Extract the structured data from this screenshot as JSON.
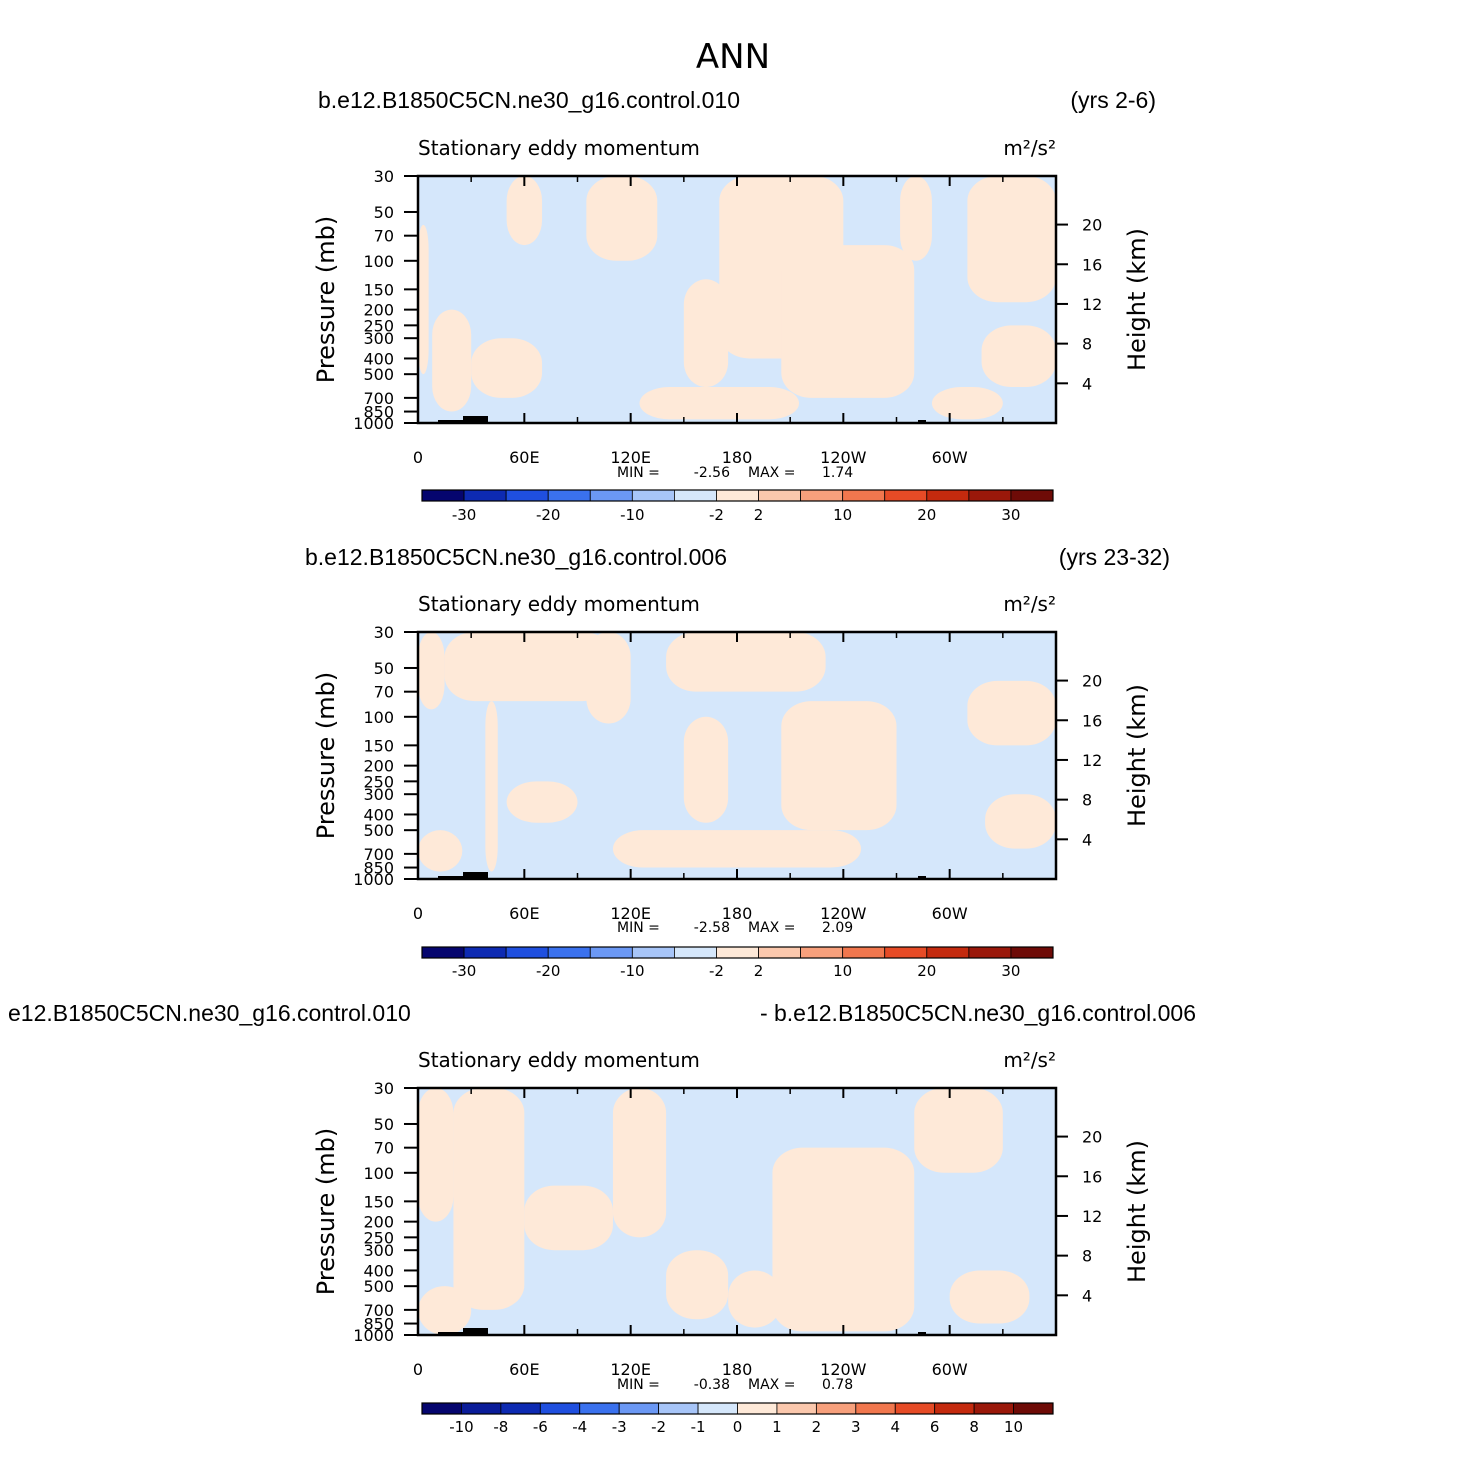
{
  "figure_title": "ANN",
  "colors": {
    "neg": "#d5e7fb",
    "pos": "#fee9d8",
    "topo": "#000000"
  },
  "chart_data": [
    {
      "type": "heatmap",
      "case_left": "b.e12.B1850C5CN.ne30_g16.control.010",
      "case_right": "(yrs 2-6)",
      "subtitle": "Stationary eddy momentum",
      "units": "m²/s²",
      "ylabel": "Pressure (mb)",
      "y2label": "Height (km)",
      "x_ticks": [
        "0",
        "60E",
        "120E",
        "180",
        "120W",
        "60W"
      ],
      "y_ticks": [
        "30",
        "50",
        "70",
        "100",
        "150",
        "200",
        "250",
        "300",
        "400",
        "500",
        "700",
        "850",
        "1000"
      ],
      "y2_ticks": [
        "20",
        "16",
        "12",
        "8",
        "4"
      ],
      "min_label": "MIN =",
      "min_value": "-2.56",
      "max_label": "MAX =",
      "max_value": "1.74",
      "colorbar_labels": [
        "-30",
        "-20",
        "-10",
        "-2",
        "2",
        "10",
        "20",
        "30"
      ],
      "colorbar_colors": [
        "#05056e",
        "#0d2ab2",
        "#1f4fdf",
        "#3a71ee",
        "#6b98f4",
        "#a7c5f8",
        "#d5e7fb",
        "#fee9d8",
        "#fbc8ad",
        "#f7a07c",
        "#f1774e",
        "#e64b26",
        "#c42a0e",
        "#9a180a",
        "#6e0b07"
      ],
      "x_range_deg": [
        0,
        360
      ],
      "y_range_mb": [
        1000,
        30
      ],
      "pos_regions": [
        {
          "lon": [
            0,
            6
          ],
          "p": [
            60,
            500
          ]
        },
        {
          "lon": [
            8,
            30
          ],
          "p": [
            200,
            850
          ]
        },
        {
          "lon": [
            30,
            70
          ],
          "p": [
            300,
            700
          ]
        },
        {
          "lon": [
            50,
            70
          ],
          "p": [
            30,
            80
          ]
        },
        {
          "lon": [
            95,
            135
          ],
          "p": [
            30,
            100
          ]
        },
        {
          "lon": [
            150,
            175
          ],
          "p": [
            130,
            600
          ]
        },
        {
          "lon": [
            125,
            215
          ],
          "p": [
            600,
            950
          ]
        },
        {
          "lon": [
            170,
            240
          ],
          "p": [
            30,
            400
          ]
        },
        {
          "lon": [
            205,
            280
          ],
          "p": [
            80,
            700
          ]
        },
        {
          "lon": [
            272,
            290
          ],
          "p": [
            30,
            100
          ]
        },
        {
          "lon": [
            310,
            360
          ],
          "p": [
            30,
            180
          ]
        },
        {
          "lon": [
            318,
            360
          ],
          "p": [
            250,
            600
          ]
        },
        {
          "lon": [
            290,
            330
          ],
          "p": [
            600,
            950
          ]
        }
      ]
    },
    {
      "type": "heatmap",
      "case_left": "b.e12.B1850C5CN.ne30_g16.control.006",
      "case_right": "(yrs 23-32)",
      "subtitle": "Stationary eddy momentum",
      "units": "m²/s²",
      "ylabel": "Pressure (mb)",
      "y2label": "Height (km)",
      "x_ticks": [
        "0",
        "60E",
        "120E",
        "180",
        "120W",
        "60W"
      ],
      "y_ticks": [
        "30",
        "50",
        "70",
        "100",
        "150",
        "200",
        "250",
        "300",
        "400",
        "500",
        "700",
        "850",
        "1000"
      ],
      "y2_ticks": [
        "20",
        "16",
        "12",
        "8",
        "4"
      ],
      "min_label": "MIN =",
      "min_value": "-2.58",
      "max_label": "MAX =",
      "max_value": "2.09",
      "colorbar_labels": [
        "-30",
        "-20",
        "-10",
        "-2",
        "2",
        "10",
        "20",
        "30"
      ],
      "colorbar_colors": [
        "#05056e",
        "#0d2ab2",
        "#1f4fdf",
        "#3a71ee",
        "#6b98f4",
        "#a7c5f8",
        "#d5e7fb",
        "#fee9d8",
        "#fbc8ad",
        "#f7a07c",
        "#f1774e",
        "#e64b26",
        "#c42a0e",
        "#9a180a",
        "#6e0b07"
      ],
      "x_range_deg": [
        0,
        360
      ],
      "y_range_mb": [
        1000,
        30
      ],
      "pos_regions": [
        {
          "lon": [
            0,
            15
          ],
          "p": [
            30,
            90
          ]
        },
        {
          "lon": [
            15,
            110
          ],
          "p": [
            30,
            80
          ]
        },
        {
          "lon": [
            38,
            45
          ],
          "p": [
            80,
            900
          ]
        },
        {
          "lon": [
            50,
            90
          ],
          "p": [
            250,
            450
          ]
        },
        {
          "lon": [
            95,
            120
          ],
          "p": [
            30,
            110
          ]
        },
        {
          "lon": [
            140,
            230
          ],
          "p": [
            30,
            70
          ]
        },
        {
          "lon": [
            150,
            175
          ],
          "p": [
            100,
            450
          ]
        },
        {
          "lon": [
            110,
            250
          ],
          "p": [
            500,
            850
          ]
        },
        {
          "lon": [
            205,
            270
          ],
          "p": [
            80,
            500
          ]
        },
        {
          "lon": [
            310,
            360
          ],
          "p": [
            60,
            150
          ]
        },
        {
          "lon": [
            320,
            360
          ],
          "p": [
            300,
            650
          ]
        },
        {
          "lon": [
            0,
            25
          ],
          "p": [
            500,
            900
          ]
        }
      ]
    },
    {
      "type": "heatmap",
      "case_left": "e12.B1850C5CN.ne30_g16.control.010",
      "case_right": "- b.e12.B1850C5CN.ne30_g16.control.006",
      "subtitle": "Stationary eddy momentum",
      "units": "m²/s²",
      "ylabel": "Pressure (mb)",
      "y2label": "Height (km)",
      "x_ticks": [
        "0",
        "60E",
        "120E",
        "180",
        "120W",
        "60W"
      ],
      "y_ticks": [
        "30",
        "50",
        "70",
        "100",
        "150",
        "200",
        "250",
        "300",
        "400",
        "500",
        "700",
        "850",
        "1000"
      ],
      "y2_ticks": [
        "20",
        "16",
        "12",
        "8",
        "4"
      ],
      "min_label": "MIN =",
      "min_value": "-0.38",
      "max_label": "MAX =",
      "max_value": "0.78",
      "colorbar_labels": [
        "-10",
        "-8",
        "-6",
        "-4",
        "-3",
        "-2",
        "-1",
        "0",
        "1",
        "2",
        "3",
        "4",
        "6",
        "8",
        "10"
      ],
      "colorbar_colors": [
        "#05056e",
        "#0a1c99",
        "#0d2ab2",
        "#1f4fdf",
        "#3a71ee",
        "#6b98f4",
        "#a7c5f8",
        "#d5e7fb",
        "#fee9d8",
        "#fbc8ad",
        "#f7a07c",
        "#f1774e",
        "#e64b26",
        "#c42a0e",
        "#9a180a",
        "#6e0b07"
      ],
      "x_range_deg": [
        0,
        360
      ],
      "y_range_mb": [
        1000,
        30
      ],
      "pos_regions": [
        {
          "lon": [
            20,
            60
          ],
          "p": [
            30,
            700
          ]
        },
        {
          "lon": [
            0,
            20
          ],
          "p": [
            30,
            200
          ]
        },
        {
          "lon": [
            60,
            110
          ],
          "p": [
            120,
            300
          ]
        },
        {
          "lon": [
            110,
            140
          ],
          "p": [
            30,
            250
          ]
        },
        {
          "lon": [
            140,
            175
          ],
          "p": [
            300,
            800
          ]
        },
        {
          "lon": [
            175,
            205
          ],
          "p": [
            400,
            900
          ]
        },
        {
          "lon": [
            200,
            280
          ],
          "p": [
            70,
            950
          ]
        },
        {
          "lon": [
            280,
            330
          ],
          "p": [
            30,
            100
          ]
        },
        {
          "lon": [
            300,
            345
          ],
          "p": [
            400,
            850
          ]
        },
        {
          "lon": [
            0,
            30
          ],
          "p": [
            500,
            1000
          ]
        }
      ]
    }
  ]
}
